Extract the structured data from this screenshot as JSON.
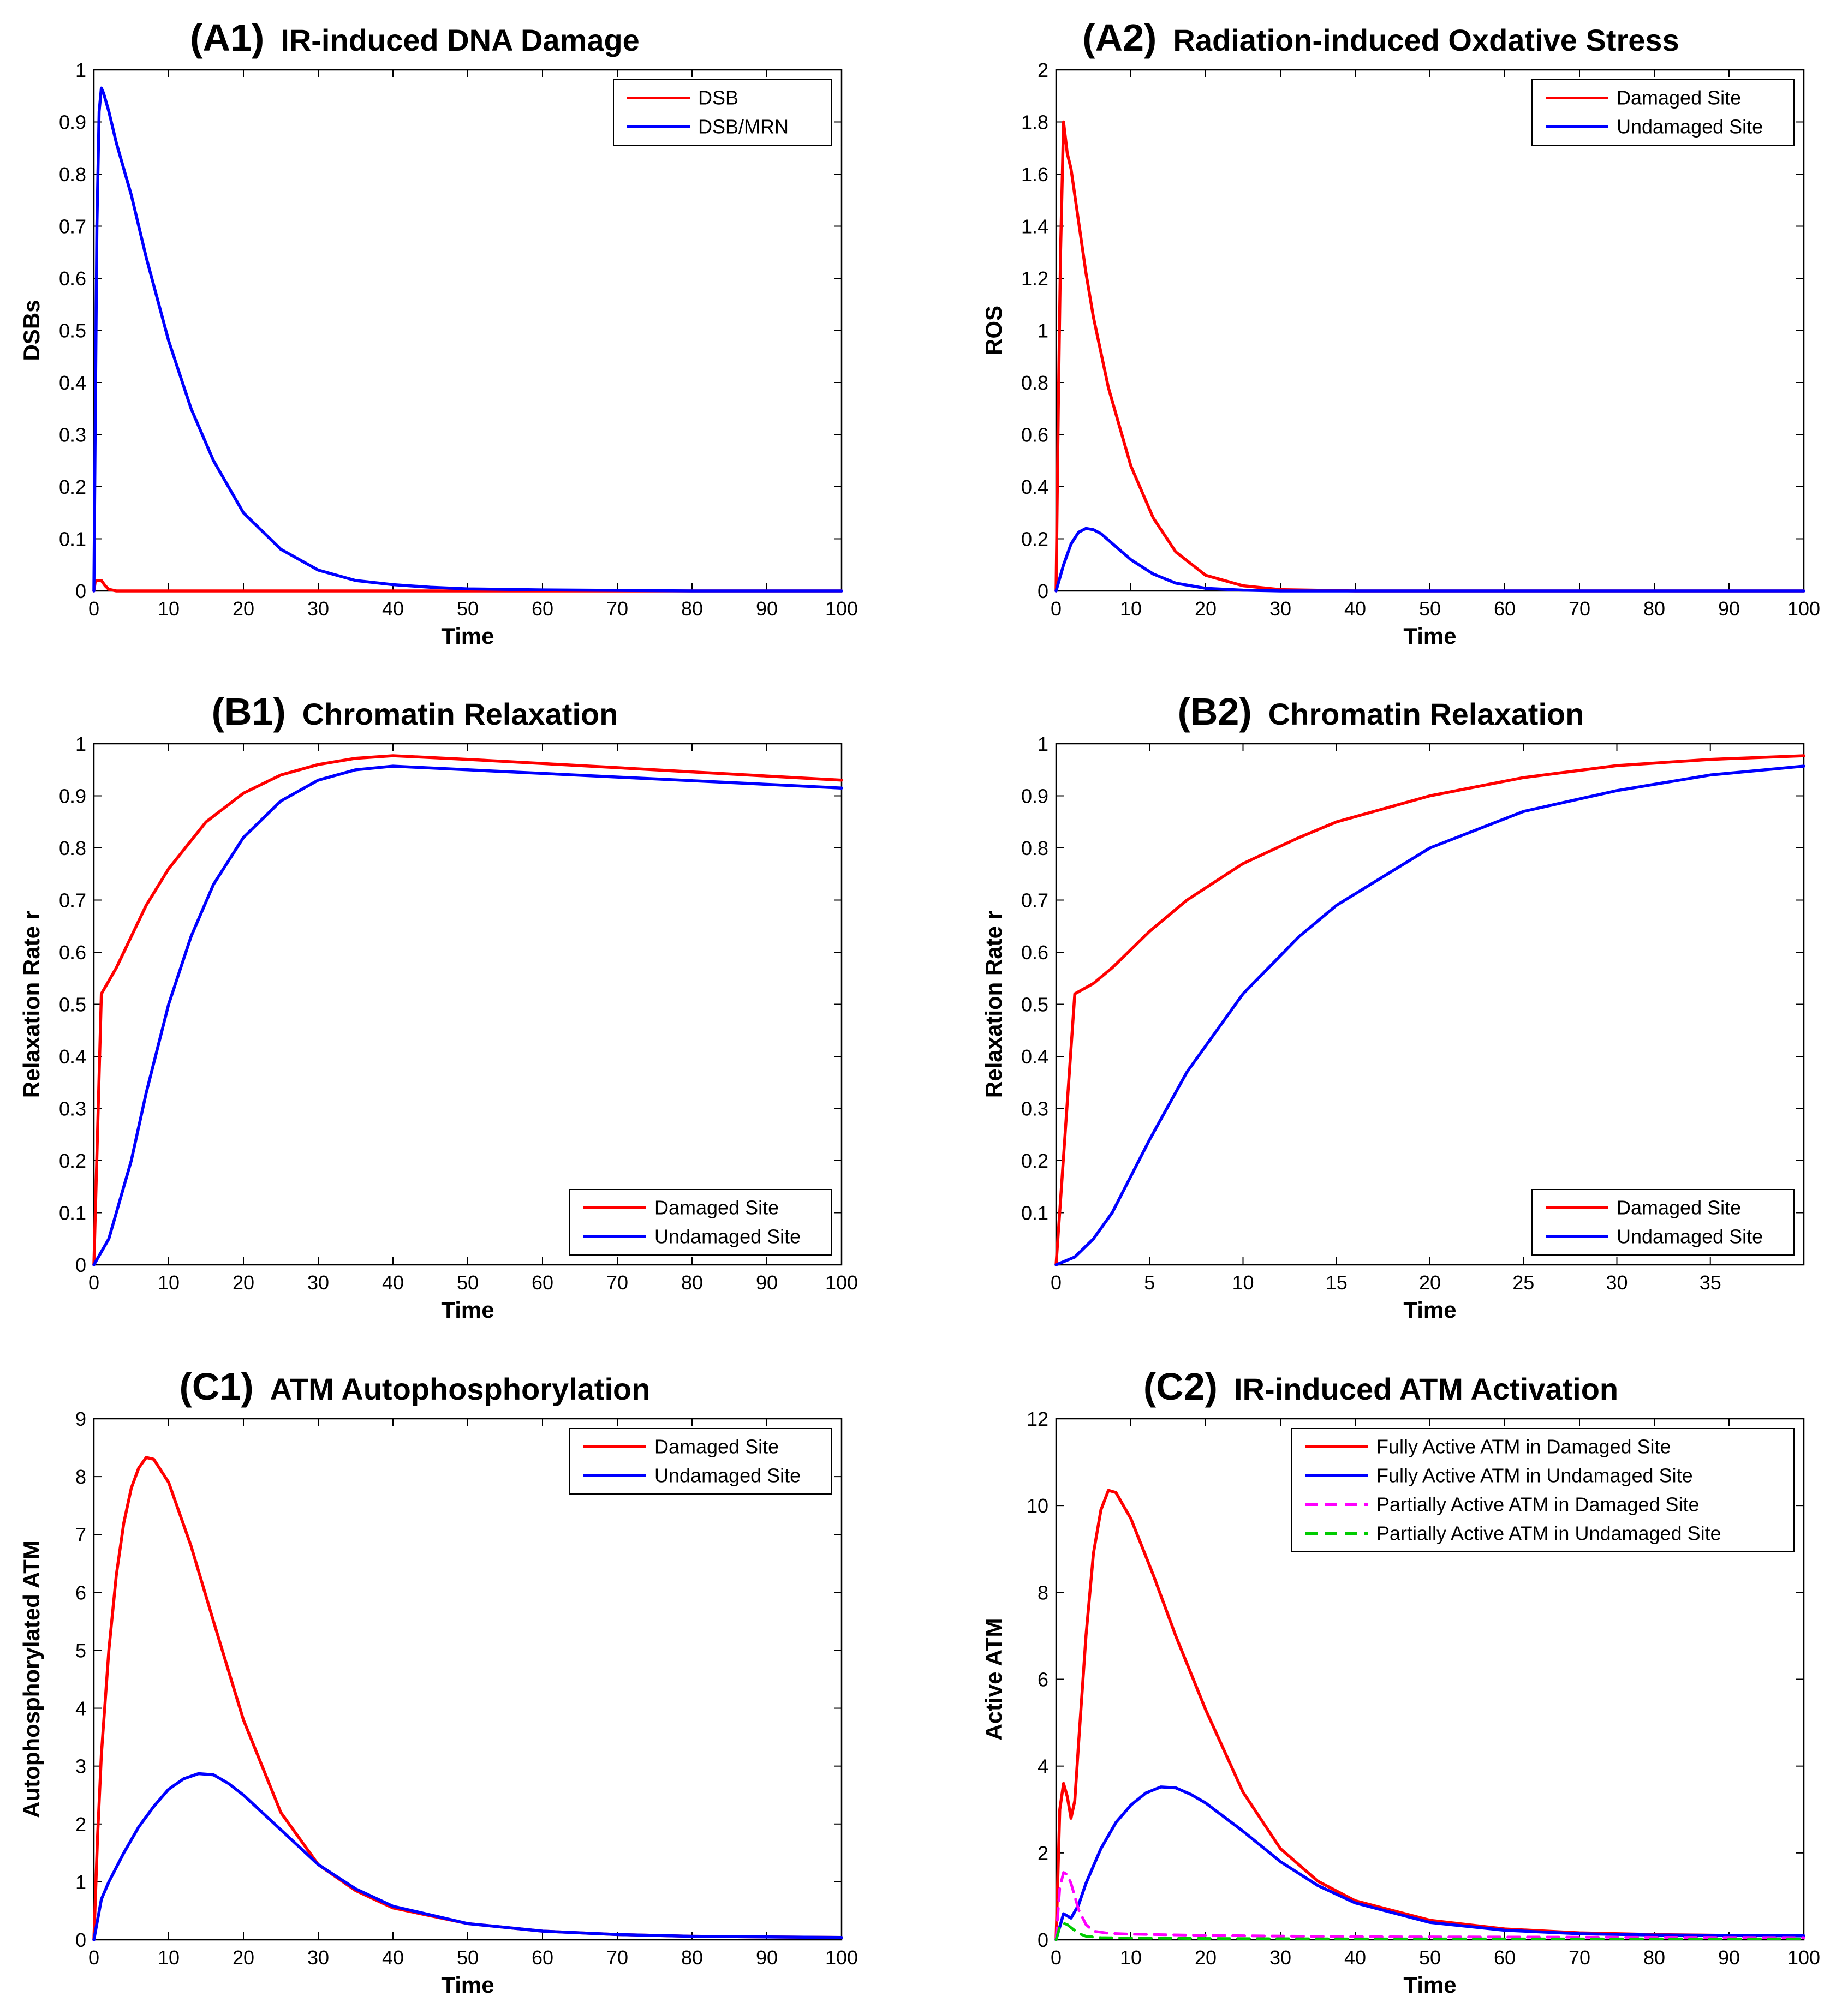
{
  "chart_data": [
    {
      "id": "A1",
      "panel_id": "(A1)",
      "title": "IR-induced DNA Damage",
      "type": "line",
      "xlabel": "Time",
      "ylabel": "DSBs",
      "xlim": [
        0,
        100
      ],
      "ylim": [
        0,
        1
      ],
      "xticks": [
        "0",
        "10",
        "20",
        "30",
        "40",
        "50",
        "60",
        "70",
        "80",
        "90",
        "100"
      ],
      "yticks": [
        "0",
        "0.1",
        "0.2",
        "0.3",
        "0.4",
        "0.5",
        "0.6",
        "0.7",
        "0.8",
        "0.9",
        "1"
      ],
      "legend_position": "top-right",
      "series": [
        {
          "name": "DSB",
          "color": "#ff0000",
          "style": "solid",
          "x": [
            0,
            0.2,
            0.5,
            1,
            1.5,
            2,
            3,
            100
          ],
          "y": [
            0,
            0.02,
            0.02,
            0.02,
            0.01,
            0.003,
            0,
            0
          ]
        },
        {
          "name": "DSB/MRN",
          "color": "#0000ff",
          "style": "solid",
          "x": [
            0,
            0.2,
            0.4,
            0.7,
            1,
            1.3,
            2,
            3,
            5,
            7,
            10,
            13,
            16,
            20,
            25,
            30,
            35,
            40,
            45,
            50,
            60,
            70,
            80,
            100
          ],
          "y": [
            0,
            0.35,
            0.7,
            0.92,
            0.965,
            0.955,
            0.92,
            0.86,
            0.76,
            0.64,
            0.48,
            0.35,
            0.25,
            0.15,
            0.08,
            0.04,
            0.02,
            0.012,
            0.007,
            0.004,
            0.002,
            0.001,
            0.0,
            0.0
          ]
        }
      ]
    },
    {
      "id": "A2",
      "panel_id": "(A2)",
      "title": "Radiation-induced Oxdative Stress",
      "type": "line",
      "xlabel": "Time",
      "ylabel": "ROS",
      "xlim": [
        0,
        100
      ],
      "ylim": [
        0,
        2
      ],
      "xticks": [
        "0",
        "10",
        "20",
        "30",
        "40",
        "50",
        "60",
        "70",
        "80",
        "90",
        "100"
      ],
      "yticks": [
        "0",
        "0.2",
        "0.4",
        "0.6",
        "0.8",
        "1",
        "1.2",
        "1.4",
        "1.6",
        "1.8",
        "2"
      ],
      "legend_position": "top-right",
      "series": [
        {
          "name": "Damaged Site",
          "color": "#ff0000",
          "style": "solid",
          "x": [
            0,
            0.3,
            0.6,
            1,
            1.5,
            2,
            3,
            4,
            5,
            7,
            10,
            13,
            16,
            20,
            25,
            30,
            40,
            100
          ],
          "y": [
            0,
            0.7,
            1.3,
            1.8,
            1.68,
            1.62,
            1.42,
            1.22,
            1.05,
            0.78,
            0.48,
            0.28,
            0.15,
            0.06,
            0.02,
            0.005,
            0,
            0
          ]
        },
        {
          "name": "Undamaged Site",
          "color": "#0000ff",
          "style": "solid",
          "x": [
            0,
            1,
            2,
            3,
            4,
            5,
            6,
            8,
            10,
            13,
            16,
            20,
            25,
            30,
            100
          ],
          "y": [
            0,
            0.1,
            0.18,
            0.225,
            0.24,
            0.235,
            0.22,
            0.17,
            0.12,
            0.065,
            0.03,
            0.01,
            0.003,
            0,
            0
          ]
        }
      ]
    },
    {
      "id": "B1",
      "panel_id": "(B1)",
      "title": "Chromatin Relaxation",
      "type": "line",
      "xlabel": "Time",
      "ylabel": "Relaxation Rate r",
      "xlim": [
        0,
        100
      ],
      "ylim": [
        0,
        1
      ],
      "xticks": [
        "0",
        "10",
        "20",
        "30",
        "40",
        "50",
        "60",
        "70",
        "80",
        "90",
        "100"
      ],
      "yticks": [
        "0",
        "0.1",
        "0.2",
        "0.3",
        "0.4",
        "0.5",
        "0.6",
        "0.7",
        "0.8",
        "0.9",
        "1"
      ],
      "legend_position": "bottom-right",
      "series": [
        {
          "name": "Damaged Site",
          "color": "#ff0000",
          "style": "solid",
          "x": [
            0,
            1,
            3,
            5,
            7,
            10,
            15,
            20,
            25,
            30,
            35,
            40,
            50,
            60,
            70,
            80,
            90,
            100
          ],
          "y": [
            0,
            0.52,
            0.57,
            0.63,
            0.69,
            0.76,
            0.85,
            0.905,
            0.94,
            0.96,
            0.972,
            0.977,
            0.97,
            0.962,
            0.954,
            0.946,
            0.938,
            0.93
          ]
        },
        {
          "name": "Undamaged Site",
          "color": "#0000ff",
          "style": "solid",
          "x": [
            0,
            2,
            5,
            7,
            10,
            13,
            16,
            20,
            25,
            30,
            35,
            40,
            50,
            60,
            70,
            80,
            90,
            100
          ],
          "y": [
            0,
            0.05,
            0.2,
            0.33,
            0.5,
            0.63,
            0.73,
            0.82,
            0.89,
            0.93,
            0.95,
            0.957,
            0.95,
            0.943,
            0.936,
            0.929,
            0.922,
            0.915
          ]
        }
      ]
    },
    {
      "id": "B2",
      "panel_id": "(B2)",
      "title": "Chromatin Relaxation",
      "type": "line",
      "xlabel": "Time",
      "ylabel": "Relaxation Rate r",
      "xlim": [
        0,
        40
      ],
      "ylim": [
        0,
        1
      ],
      "xticks": [
        "0",
        "5",
        "10",
        "15",
        "20",
        "25",
        "30",
        "35"
      ],
      "xtick_values": [
        0,
        5,
        10,
        15,
        20,
        25,
        30,
        35
      ],
      "yticks": [
        "0.1",
        "0.2",
        "0.3",
        "0.4",
        "0.5",
        "0.6",
        "0.7",
        "0.8",
        "0.9",
        "1"
      ],
      "legend_position": "bottom-right",
      "series": [
        {
          "name": "Damaged Site",
          "color": "#ff0000",
          "style": "solid",
          "x": [
            0,
            1,
            2,
            3,
            5,
            7,
            10,
            13,
            15,
            20,
            25,
            30,
            35,
            40
          ],
          "y": [
            0,
            0.52,
            0.54,
            0.57,
            0.64,
            0.7,
            0.77,
            0.82,
            0.85,
            0.9,
            0.935,
            0.958,
            0.97,
            0.977
          ]
        },
        {
          "name": "Undamaged Site",
          "color": "#0000ff",
          "style": "solid",
          "x": [
            0,
            1,
            2,
            3,
            5,
            7,
            10,
            13,
            15,
            20,
            25,
            30,
            35,
            40
          ],
          "y": [
            0,
            0.015,
            0.05,
            0.1,
            0.24,
            0.37,
            0.52,
            0.63,
            0.69,
            0.8,
            0.87,
            0.91,
            0.94,
            0.957
          ]
        }
      ]
    },
    {
      "id": "C1",
      "panel_id": "(C1)",
      "title": "ATM Autophosphorylation",
      "type": "line",
      "xlabel": "Time",
      "ylabel": "Autophosphorylated ATM",
      "xlim": [
        0,
        100
      ],
      "ylim": [
        0,
        9
      ],
      "xticks": [
        "0",
        "10",
        "20",
        "30",
        "40",
        "50",
        "60",
        "70",
        "80",
        "90",
        "100"
      ],
      "yticks": [
        "0",
        "1",
        "2",
        "3",
        "4",
        "5",
        "6",
        "7",
        "8",
        "9"
      ],
      "legend_position": "top-right",
      "series": [
        {
          "name": "Damaged Site",
          "color": "#ff0000",
          "style": "solid",
          "x": [
            0,
            0.5,
            1,
            2,
            3,
            4,
            5,
            6,
            7,
            8,
            10,
            13,
            16,
            20,
            25,
            30,
            35,
            40,
            50,
            60,
            70,
            80,
            90,
            100
          ],
          "y": [
            0,
            1.8,
            3.2,
            5.0,
            6.3,
            7.2,
            7.8,
            8.15,
            8.33,
            8.3,
            7.9,
            6.8,
            5.5,
            3.8,
            2.2,
            1.3,
            0.85,
            0.55,
            0.28,
            0.15,
            0.09,
            0.06,
            0.05,
            0.04
          ]
        },
        {
          "name": "Undamaged Site",
          "color": "#0000ff",
          "style": "solid",
          "x": [
            0,
            1,
            2,
            4,
            6,
            8,
            10,
            12,
            14,
            16,
            18,
            20,
            25,
            30,
            35,
            40,
            50,
            60,
            70,
            80,
            90,
            100
          ],
          "y": [
            0,
            0.7,
            1.0,
            1.5,
            1.95,
            2.3,
            2.6,
            2.78,
            2.87,
            2.85,
            2.7,
            2.5,
            1.9,
            1.3,
            0.88,
            0.58,
            0.28,
            0.15,
            0.09,
            0.06,
            0.05,
            0.04
          ]
        }
      ]
    },
    {
      "id": "C2",
      "panel_id": "(C2)",
      "title": "IR-induced ATM Activation",
      "type": "line",
      "xlabel": "Time",
      "ylabel": "Active ATM",
      "xlim": [
        0,
        100
      ],
      "ylim": [
        0,
        12
      ],
      "xticks": [
        "0",
        "10",
        "20",
        "30",
        "40",
        "50",
        "60",
        "70",
        "80",
        "90",
        "100"
      ],
      "yticks": [
        "0",
        "2",
        "4",
        "6",
        "8",
        "10",
        "12"
      ],
      "legend_position": "top-right",
      "series": [
        {
          "name": "Fully Active ATM in Damaged Site",
          "color": "#ff0000",
          "style": "solid",
          "x": [
            0,
            0.5,
            1,
            1.5,
            2,
            2.5,
            3,
            4,
            5,
            6,
            7,
            8,
            10,
            13,
            16,
            20,
            25,
            30,
            35,
            40,
            50,
            60,
            70,
            80,
            90,
            100
          ],
          "y": [
            0,
            3.0,
            3.6,
            3.3,
            2.8,
            3.2,
            4.5,
            7.0,
            8.9,
            9.9,
            10.35,
            10.3,
            9.7,
            8.4,
            7.0,
            5.3,
            3.4,
            2.1,
            1.35,
            0.9,
            0.45,
            0.25,
            0.16,
            0.12,
            0.1,
            0.09
          ]
        },
        {
          "name": "Fully Active ATM in Undamaged Site",
          "color": "#0000ff",
          "style": "solid",
          "x": [
            0,
            0.5,
            1,
            1.5,
            2,
            3,
            4,
            6,
            8,
            10,
            12,
            14,
            16,
            18,
            20,
            25,
            30,
            35,
            40,
            50,
            60,
            70,
            80,
            90,
            100
          ],
          "y": [
            0,
            0.3,
            0.6,
            0.55,
            0.5,
            0.8,
            1.3,
            2.1,
            2.7,
            3.1,
            3.38,
            3.52,
            3.5,
            3.35,
            3.15,
            2.5,
            1.8,
            1.25,
            0.85,
            0.4,
            0.22,
            0.14,
            0.11,
            0.1,
            0.09
          ]
        },
        {
          "name": "Partially Active ATM in Damaged Site",
          "color": "#ff00ff",
          "style": "dashed",
          "x": [
            0,
            0.5,
            1,
            1.5,
            2,
            3,
            4,
            5,
            7,
            10,
            20,
            40,
            100
          ],
          "y": [
            0,
            1.2,
            1.55,
            1.5,
            1.3,
            0.7,
            0.35,
            0.2,
            0.15,
            0.13,
            0.1,
            0.07,
            0.05
          ]
        },
        {
          "name": "Partially Active ATM in Undamaged Site",
          "color": "#00cc00",
          "style": "dashed",
          "x": [
            0,
            0.5,
            1,
            1.5,
            2,
            3,
            4,
            6,
            10,
            20,
            40,
            100
          ],
          "y": [
            0,
            0.3,
            0.38,
            0.35,
            0.28,
            0.15,
            0.08,
            0.05,
            0.04,
            0.03,
            0.02,
            0.02
          ]
        }
      ]
    }
  ]
}
